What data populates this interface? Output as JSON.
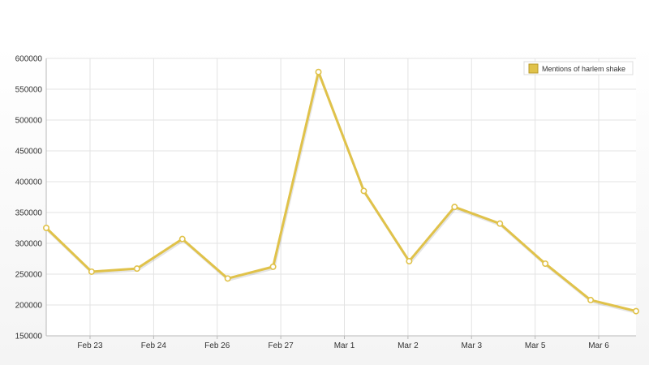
{
  "chart_data": {
    "type": "line",
    "title": "",
    "xlabel": "",
    "ylabel": "",
    "ylim": [
      150000,
      600000
    ],
    "y_ticks": [
      150000,
      200000,
      250000,
      300000,
      350000,
      400000,
      450000,
      500000,
      550000,
      600000
    ],
    "x_tick_labels": [
      "Feb 23",
      "Feb 24",
      "Feb 26",
      "Feb 27",
      "Mar 1",
      "Mar 2",
      "Mar 3",
      "Mar 5",
      "Mar 6"
    ],
    "grid": true,
    "legend_position": "top-right",
    "series": [
      {
        "name": "Mentions of harlem shake",
        "color": "#e0c24a",
        "values": [
          325000,
          254000,
          259000,
          307000,
          243000,
          262000,
          578000,
          385000,
          271000,
          359000,
          332000,
          267000,
          208000,
          190000
        ]
      }
    ]
  }
}
